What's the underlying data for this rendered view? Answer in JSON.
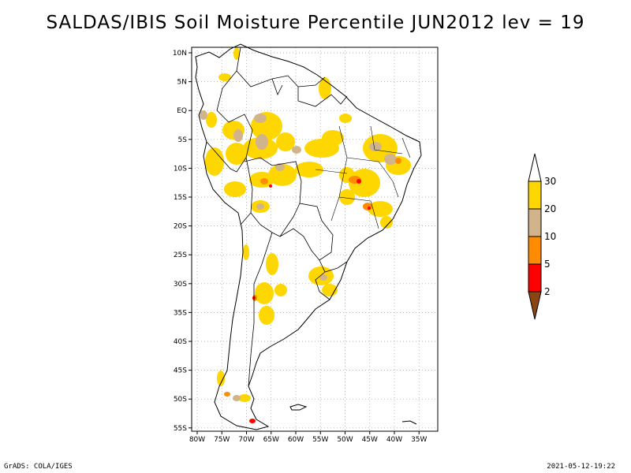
{
  "title": "SALDAS/IBIS Soil Moisture Percentile JUN2012 lev = 19",
  "map": {
    "lon_range": [
      -80,
      -30
    ],
    "lat_range": [
      -56,
      12
    ],
    "lat_ticks": [
      {
        "value": 10,
        "label": "10N"
      },
      {
        "value": 5,
        "label": "5N"
      },
      {
        "value": 0,
        "label": "EQ"
      },
      {
        "value": -5,
        "label": "5S"
      },
      {
        "value": -10,
        "label": "10S"
      },
      {
        "value": -15,
        "label": "15S"
      },
      {
        "value": -20,
        "label": "20S"
      },
      {
        "value": -25,
        "label": "25S"
      },
      {
        "value": -30,
        "label": "30S"
      },
      {
        "value": -35,
        "label": "35S"
      },
      {
        "value": -40,
        "label": "40S"
      },
      {
        "value": -45,
        "label": "45S"
      },
      {
        "value": -50,
        "label": "50S"
      },
      {
        "value": -55,
        "label": "55S"
      }
    ],
    "lon_ticks": [
      {
        "value": -80,
        "label": "80W"
      },
      {
        "value": -75,
        "label": "75W"
      },
      {
        "value": -70,
        "label": "70W"
      },
      {
        "value": -65,
        "label": "65W"
      },
      {
        "value": -60,
        "label": "60W"
      },
      {
        "value": -55,
        "label": "55W"
      },
      {
        "value": -50,
        "label": "50W"
      },
      {
        "value": -45,
        "label": "45W"
      },
      {
        "value": -40,
        "label": "40W"
      },
      {
        "value": -35,
        "label": "35W"
      }
    ]
  },
  "colorbar": {
    "levels": [
      {
        "label": "30",
        "color": "#ffffff"
      },
      {
        "label": "20",
        "color": "#ffd700"
      },
      {
        "label": "10",
        "color": "#d2b48c"
      },
      {
        "label": "5",
        "color": "#ff8c00"
      },
      {
        "label": "2",
        "color": "#ff0000"
      }
    ],
    "bottom_color": "#8b4513"
  },
  "footer": {
    "left": "GrADS: COLA/IGES",
    "right": "2021-05-12-19:22"
  }
}
